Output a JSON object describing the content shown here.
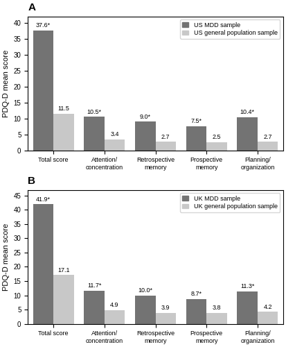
{
  "chart_data": [
    {
      "type": "bar",
      "title": "A",
      "y_label": "PDQ-D mean score",
      "categories": [
        "Total score",
        "Attention/\nconcentration",
        "Retrospective\nmemory",
        "Prospective\nmemory",
        "Planning/\norganization"
      ],
      "series": [
        {
          "name": "US MDD sample",
          "color": "#737373",
          "values": [
            37.6,
            10.5,
            9.0,
            7.5,
            10.4
          ],
          "value_labels": [
            "37.6*",
            "10.5*",
            "9.0*",
            "7.5*",
            "10.4*"
          ]
        },
        {
          "name": "US general population sample",
          "color": "#c8c8c8",
          "values": [
            11.5,
            3.4,
            2.7,
            2.5,
            2.7
          ]
        }
      ],
      "ylim": [
        0,
        42
      ],
      "yticks": [
        0,
        5,
        10,
        15,
        20,
        25,
        30,
        35,
        40
      ],
      "data_labels": true,
      "legend": "upper right"
    },
    {
      "type": "bar",
      "title": "B",
      "y_label": "PDQ-D mean score",
      "categories": [
        "Total score",
        "Attention/\nconcentration",
        "Retrospective\nmemory",
        "Prospective\nmemory",
        "Planning/\norganization"
      ],
      "series": [
        {
          "name": "UK MDD sample",
          "color": "#737373",
          "values": [
            41.9,
            11.7,
            10.0,
            8.7,
            11.3
          ],
          "value_labels": [
            "41.9*",
            "11.7*",
            "10.0*",
            "8.7*",
            "11.3*"
          ]
        },
        {
          "name": "UK general population sample",
          "color": "#c8c8c8",
          "values": [
            17.1,
            4.9,
            3.9,
            3.8,
            4.2
          ]
        }
      ],
      "ylim": [
        0,
        47
      ],
      "yticks": [
        0,
        5,
        10,
        15,
        20,
        25,
        30,
        35,
        40,
        45
      ],
      "data_labels": true,
      "legend": "upper right"
    }
  ]
}
